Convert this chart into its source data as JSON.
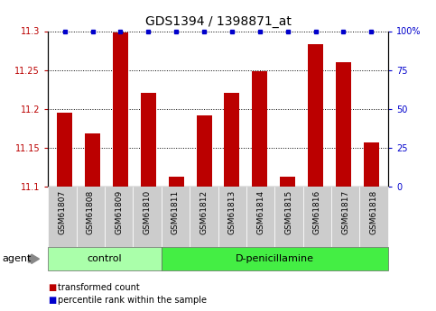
{
  "title": "GDS1394 / 1398871_at",
  "samples": [
    "GSM61807",
    "GSM61808",
    "GSM61809",
    "GSM61810",
    "GSM61811",
    "GSM61812",
    "GSM61813",
    "GSM61814",
    "GSM61815",
    "GSM61816",
    "GSM61817",
    "GSM61818"
  ],
  "bar_values": [
    11.195,
    11.168,
    11.298,
    11.22,
    11.113,
    11.192,
    11.22,
    11.248,
    11.113,
    11.283,
    11.26,
    11.157
  ],
  "percentile_values": [
    100,
    100,
    100,
    100,
    100,
    100,
    100,
    100,
    100,
    100,
    100,
    100
  ],
  "ylim_left": [
    11.1,
    11.3
  ],
  "ylim_right": [
    0,
    100
  ],
  "yticks_left": [
    11.1,
    11.15,
    11.2,
    11.25,
    11.3
  ],
  "yticks_right": [
    0,
    25,
    50,
    75,
    100
  ],
  "bar_color": "#bb0000",
  "dot_color": "#0000cc",
  "n_control": 4,
  "n_treatment": 8,
  "control_label": "control",
  "treatment_label": "D-penicillamine",
  "agent_label": "agent",
  "legend_bar_label": "transformed count",
  "legend_dot_label": "percentile rank within the sample",
  "control_bg": "#aaffaa",
  "treatment_bg": "#44ee44",
  "tick_bg": "#cccccc",
  "title_fontsize": 10,
  "tick_fontsize": 7,
  "bar_width": 0.55
}
